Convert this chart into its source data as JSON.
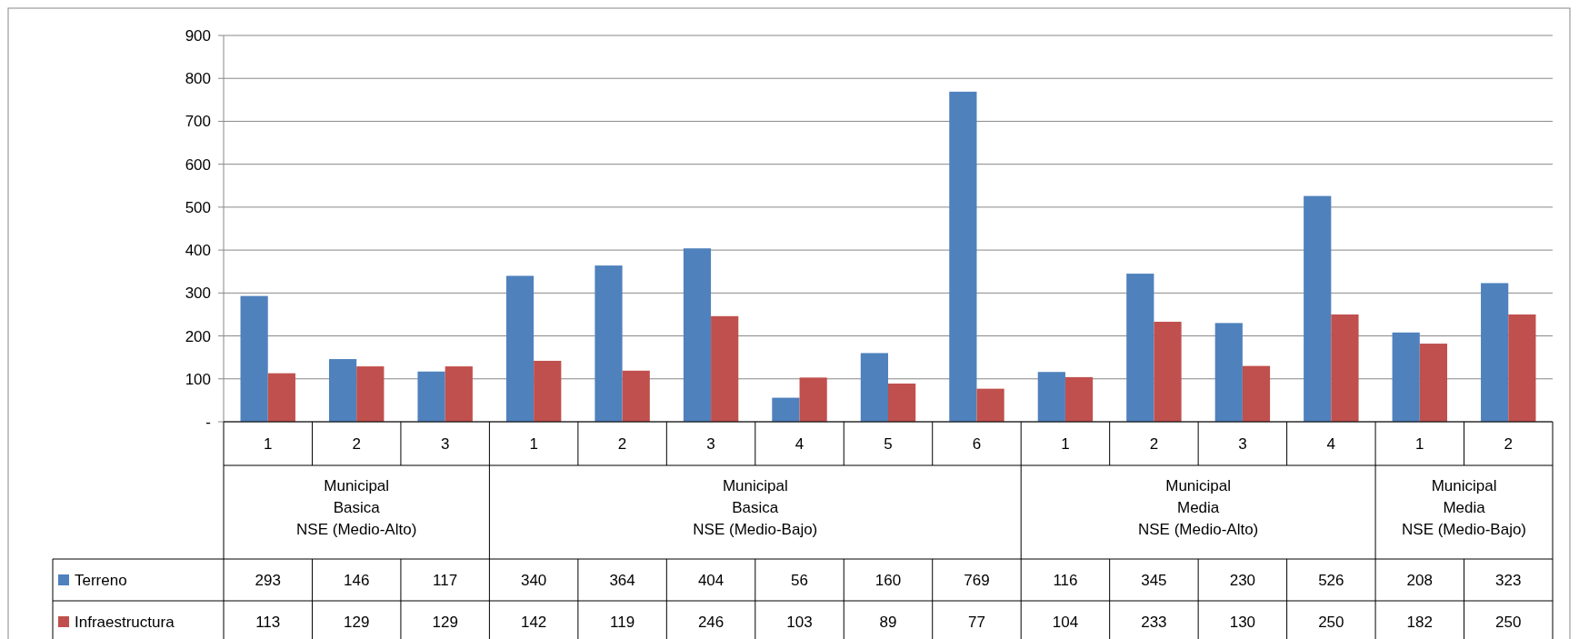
{
  "chart_data": {
    "type": "bar",
    "categories": [
      "1",
      "2",
      "3",
      "1",
      "2",
      "3",
      "4",
      "5",
      "6",
      "1",
      "2",
      "3",
      "4",
      "1",
      "2"
    ],
    "series": [
      {
        "name": "Terreno",
        "color": "#4f81bd",
        "values": [
          293,
          146,
          117,
          340,
          364,
          404,
          56,
          160,
          769,
          116,
          345,
          230,
          526,
          208,
          323
        ]
      },
      {
        "name": "Infraestructura",
        "color": "#c0504d",
        "values": [
          113,
          129,
          129,
          142,
          119,
          246,
          103,
          89,
          77,
          104,
          233,
          130,
          250,
          182,
          250
        ]
      }
    ],
    "ylim": [
      0,
      900
    ],
    "yticks": [
      {
        "value": 0,
        "label": "-"
      },
      100,
      200,
      300,
      400,
      500,
      600,
      700,
      800,
      900
    ],
    "grid": "y",
    "legend": "bottom",
    "data_labels": true,
    "annotations": [
      "Municipal\nBasica\nNSE (Medio-Alto)",
      "Municipal\nBasica\nNSE (Medio-Bajo)",
      "Municipal\nMedia\nNSE (Medio-Alto)",
      "Municipal\nMedia\nNSE (Medio-Bajo)"
    ]
  }
}
